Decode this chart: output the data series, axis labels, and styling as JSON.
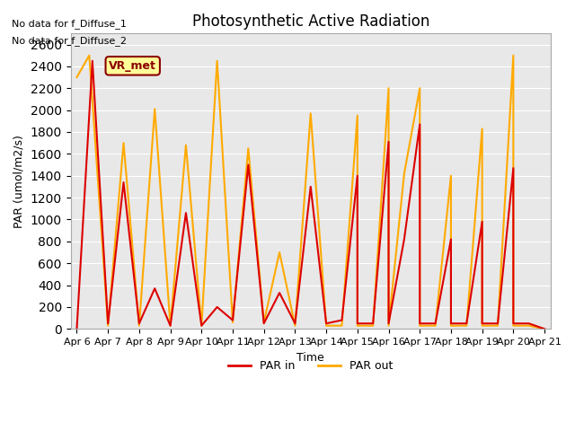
{
  "title": "Photosynthetic Active Radiation",
  "ylabel": "PAR (umol/m2/s)",
  "xlabel": "Time",
  "annotation_lines": [
    "No data for f_Diffuse_1",
    "No data for f_Diffuse_2"
  ],
  "legend_box_label": "VR_met",
  "legend_entries": [
    "PAR in",
    "PAR out"
  ],
  "legend_colors": [
    "#dd0000",
    "#ffaa00"
  ],
  "background_color": "#e8e8e8",
  "ylim": [
    0,
    2700
  ],
  "yticks": [
    0,
    200,
    400,
    600,
    800,
    1000,
    1200,
    1400,
    1600,
    1800,
    2000,
    2200,
    2400,
    2600
  ],
  "x_dates": [
    "Apr 6",
    "Apr 7",
    "Apr 8",
    "Apr 9",
    "Apr 10",
    "Apr 11",
    "Apr 12",
    "Apr 13",
    "Apr 14",
    "Apr 15",
    "Apr 16",
    "Apr 17",
    "Apr 18",
    "Apr 19",
    "Apr 20",
    "Apr 21"
  ],
  "x_values": [
    0,
    1,
    2,
    3,
    4,
    5,
    6,
    7,
    8,
    9,
    10,
    11,
    12,
    13,
    14,
    15
  ],
  "par_in_x": [
    0,
    0.5,
    1,
    1,
    1.5,
    2,
    2,
    2.5,
    3,
    3,
    3.5,
    4,
    4,
    4.5,
    5,
    5,
    5.5,
    6,
    6,
    6.5,
    7,
    7,
    7.5,
    8,
    8,
    8.5,
    9,
    9,
    9.5,
    10,
    10,
    10.5,
    11,
    11,
    11.5,
    12,
    12,
    12.5,
    13,
    13,
    13.5,
    14,
    14,
    14.5,
    15
  ],
  "par_in_y": [
    0,
    2450,
    50,
    50,
    1340,
    50,
    50,
    370,
    30,
    30,
    1060,
    30,
    30,
    200,
    80,
    80,
    1500,
    50,
    50,
    330,
    50,
    50,
    1300,
    50,
    50,
    80,
    1400,
    50,
    50,
    1710,
    50,
    820,
    1870,
    50,
    50,
    820,
    50,
    50,
    980,
    50,
    50,
    1470,
    50,
    50,
    0
  ],
  "par_out_x": [
    0,
    0.4,
    1,
    1,
    1.5,
    2,
    2,
    2.5,
    3,
    3,
    3.5,
    4,
    4,
    4.5,
    5,
    5,
    5.5,
    6,
    6,
    6.5,
    7,
    7,
    7.5,
    8,
    8,
    8.5,
    9,
    9,
    9.5,
    10,
    10,
    10.5,
    11,
    11,
    11.5,
    12,
    12,
    12.5,
    13,
    13,
    13.5,
    14,
    14,
    14.5,
    15
  ],
  "par_out_y": [
    2300,
    2500,
    30,
    30,
    1700,
    30,
    30,
    2010,
    30,
    30,
    1680,
    30,
    30,
    2450,
    60,
    60,
    1650,
    60,
    60,
    700,
    30,
    30,
    1970,
    30,
    30,
    30,
    1950,
    30,
    30,
    2200,
    30,
    1420,
    2200,
    30,
    30,
    1400,
    30,
    30,
    1830,
    30,
    30,
    2500,
    30,
    30,
    0
  ]
}
